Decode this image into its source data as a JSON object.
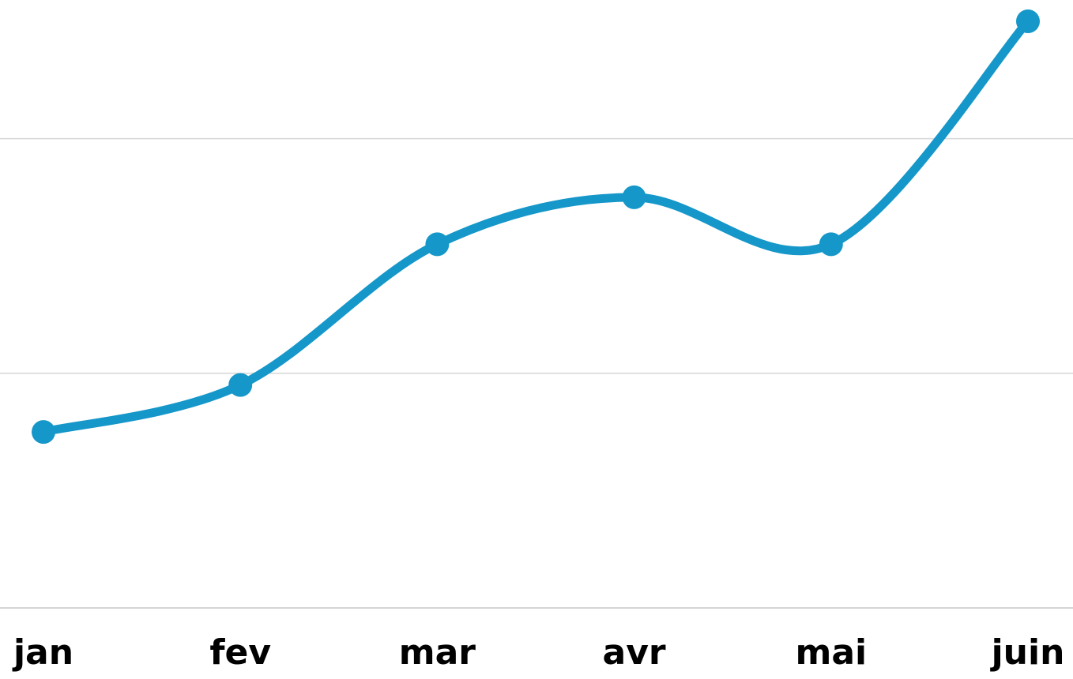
{
  "chart_data": {
    "type": "line",
    "categories": [
      "jan",
      "fev",
      "mar",
      "avr",
      "mai",
      "juin"
    ],
    "series": [
      {
        "values": [
          30,
          38,
          62,
          70,
          62,
          100
        ]
      }
    ],
    "ylim": [
      -45,
      105
    ],
    "gridlines": [
      0,
      40,
      80
    ],
    "grid": true,
    "smooth": true,
    "color": "#1597c9",
    "xlabel": "",
    "ylabel": "",
    "title": ""
  }
}
